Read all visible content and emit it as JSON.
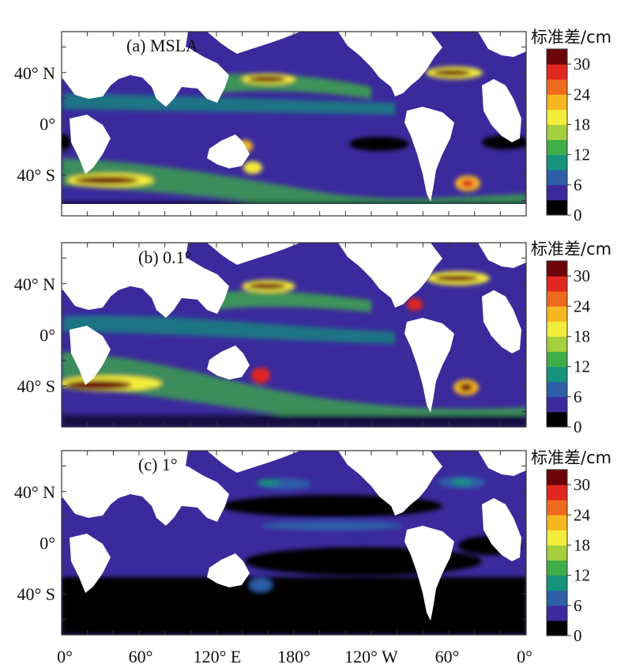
{
  "panels": [
    {
      "id": "a",
      "label": "(a) MSLA"
    },
    {
      "id": "b",
      "label": "(b) 0.1°"
    },
    {
      "id": "c",
      "label": "(c) 1°"
    }
  ],
  "y_axis": {
    "tick_labels": [
      "40° N",
      "0°",
      "40° S"
    ],
    "tick_values_deg": [
      40,
      0,
      -40
    ]
  },
  "x_axis": {
    "tick_labels": [
      "0°",
      "60°",
      "120° E",
      "180°",
      "120° W",
      "60°",
      "0°"
    ],
    "tick_values_deg_east": [
      0,
      60,
      120,
      180,
      240,
      300,
      360
    ]
  },
  "colorbar": {
    "title": "标准差/cm",
    "tick_labels": [
      "30",
      "24",
      "18",
      "12",
      "6",
      "0"
    ],
    "range": [
      0,
      33
    ],
    "colors": [
      "#000000",
      "#3b2a9c",
      "#2d5fa8",
      "#15937c",
      "#3fae48",
      "#a6cf3e",
      "#f3ec3a",
      "#f6b820",
      "#f06a1e",
      "#e02820",
      "#6d0508"
    ]
  }
}
